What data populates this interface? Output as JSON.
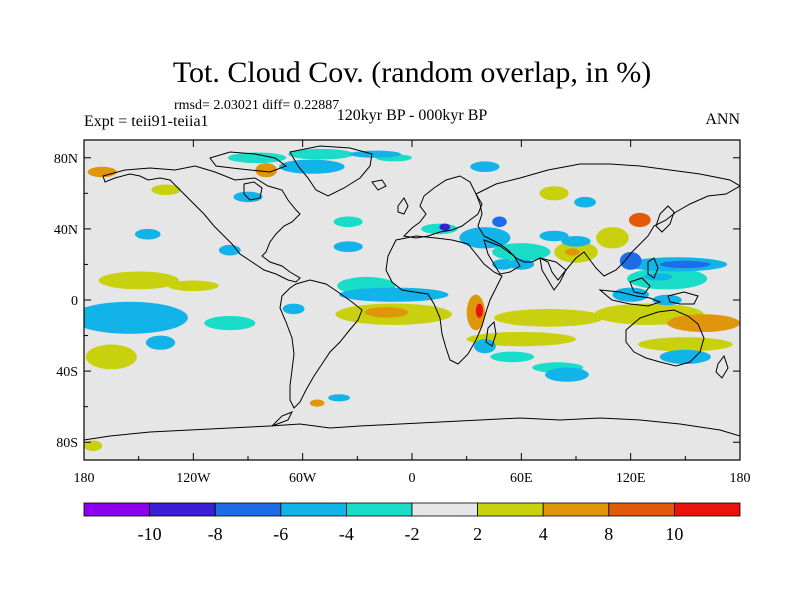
{
  "chart_data": {
    "type": "heatmap",
    "title": "Tot. Cloud Cov. (random overlap, in %)",
    "stats": "rmsd= 2.03021  diff= 0.22887",
    "experiment": "Expt = teii91-teiia1",
    "subtitle": "120kyr BP - 000kyr BP",
    "season": "ANN",
    "x_ticks": [
      "180",
      "120W",
      "60W",
      "0",
      "60E",
      "120E",
      "180"
    ],
    "x_values": [
      -180,
      -120,
      -60,
      0,
      60,
      120,
      180
    ],
    "y_ticks": [
      "80N",
      "40N",
      "0",
      "40S",
      "80S"
    ],
    "y_values": [
      80,
      40,
      0,
      -40,
      -80
    ],
    "xlim": [
      -180,
      180
    ],
    "ylim": [
      -90,
      90
    ],
    "colorbar": {
      "labels": [
        "-10",
        "-8",
        "-6",
        "-4",
        "-2",
        "2",
        "4",
        "8",
        "10"
      ],
      "colors": [
        "#8c00ee",
        "#3a1fd6",
        "#1d6ee6",
        "#11b3e8",
        "#19ddc8",
        "#e6e6e6",
        "#c9d10f",
        "#e0960a",
        "#e25a08",
        "#e8140c"
      ]
    },
    "regions": [
      {
        "lon": -160,
        "lat": -12,
        "rx": 22,
        "ry": 6,
        "level": 2
      },
      {
        "lon": -160,
        "lat": -12,
        "rx": 14,
        "ry": 4,
        "level": 1
      },
      {
        "lon": -155,
        "lat": -10,
        "rx": 32,
        "ry": 9,
        "level": 3
      },
      {
        "lon": -165,
        "lat": -32,
        "rx": 14,
        "ry": 7,
        "level": 6
      },
      {
        "lon": -150,
        "lat": 11,
        "rx": 22,
        "ry": 5,
        "level": 6
      },
      {
        "lon": -120,
        "lat": 8,
        "rx": 14,
        "ry": 3,
        "level": 6
      },
      {
        "lon": -100,
        "lat": -13,
        "rx": 14,
        "ry": 4,
        "level": 4
      },
      {
        "lon": -10,
        "lat": -8,
        "rx": 32,
        "ry": 6,
        "level": 6
      },
      {
        "lon": -14,
        "lat": -7,
        "rx": 12,
        "ry": 3,
        "level": 7
      },
      {
        "lon": -25,
        "lat": 8,
        "rx": 16,
        "ry": 5,
        "level": 4
      },
      {
        "lon": 35,
        "lat": -7,
        "rx": 5,
        "ry": 10,
        "level": 7
      },
      {
        "lon": 37,
        "lat": -6,
        "rx": 2,
        "ry": 4,
        "level": 9
      },
      {
        "lon": 75,
        "lat": -10,
        "rx": 30,
        "ry": 5,
        "level": 6
      },
      {
        "lon": 60,
        "lat": -22,
        "rx": 30,
        "ry": 4,
        "level": 6
      },
      {
        "lon": 55,
        "lat": -32,
        "rx": 12,
        "ry": 3,
        "level": 4
      },
      {
        "lon": 80,
        "lat": -38,
        "rx": 14,
        "ry": 3,
        "level": 4
      },
      {
        "lon": 60,
        "lat": 27,
        "rx": 16,
        "ry": 5,
        "level": 4
      },
      {
        "lon": 50,
        "lat": 20,
        "rx": 6,
        "ry": 3,
        "level": 3
      },
      {
        "lon": 35,
        "lat": 33,
        "rx": 5,
        "ry": 3,
        "level": 2
      },
      {
        "lon": 90,
        "lat": 27,
        "rx": 12,
        "ry": 6,
        "level": 6
      },
      {
        "lon": 88,
        "lat": 27,
        "rx": 4,
        "ry": 2,
        "level": 7
      },
      {
        "lon": 110,
        "lat": 35,
        "rx": 9,
        "ry": 6,
        "level": 6
      },
      {
        "lon": 125,
        "lat": 45,
        "rx": 6,
        "ry": 4,
        "level": 8
      },
      {
        "lon": 140,
        "lat": 12,
        "rx": 22,
        "ry": 6,
        "level": 4
      },
      {
        "lon": 135,
        "lat": 13,
        "rx": 8,
        "ry": 2,
        "level": 3
      },
      {
        "lon": 120,
        "lat": 3,
        "rx": 10,
        "ry": 4,
        "level": 3
      },
      {
        "lon": 130,
        "lat": -8,
        "rx": 30,
        "ry": 6,
        "level": 6
      },
      {
        "lon": 160,
        "lat": -13,
        "rx": 20,
        "ry": 5,
        "level": 7
      },
      {
        "lon": 150,
        "lat": -25,
        "rx": 26,
        "ry": 4,
        "level": 6
      },
      {
        "lon": -35,
        "lat": 44,
        "rx": 8,
        "ry": 3,
        "level": 4
      },
      {
        "lon": 15,
        "lat": 40,
        "rx": 10,
        "ry": 3,
        "level": 4
      },
      {
        "lon": 78,
        "lat": 60,
        "rx": 8,
        "ry": 4,
        "level": 6
      },
      {
        "lon": -85,
        "lat": 80,
        "rx": 16,
        "ry": 3,
        "level": 4
      },
      {
        "lon": -50,
        "lat": 82,
        "rx": 18,
        "ry": 3,
        "level": 4
      },
      {
        "lon": -10,
        "lat": 80,
        "rx": 10,
        "ry": 2,
        "level": 4
      },
      {
        "lon": -80,
        "lat": 73,
        "rx": 6,
        "ry": 4,
        "level": 7
      },
      {
        "lon": -170,
        "lat": 72,
        "rx": 8,
        "ry": 3,
        "level": 7
      },
      {
        "lon": -135,
        "lat": 62,
        "rx": 8,
        "ry": 3,
        "level": 6
      },
      {
        "lon": -175,
        "lat": -82,
        "rx": 5,
        "ry": 3,
        "level": 6
      },
      {
        "lon": -52,
        "lat": -58,
        "rx": 4,
        "ry": 2,
        "level": 7
      },
      {
        "lon": -145,
        "lat": 37,
        "rx": 7,
        "ry": 3,
        "level": 3
      },
      {
        "lon": -35,
        "lat": 30,
        "rx": 8,
        "ry": 3,
        "level": 3
      },
      {
        "lon": 40,
        "lat": 35,
        "rx": 14,
        "ry": 6,
        "level": 3
      },
      {
        "lon": 48,
        "lat": 44,
        "rx": 4,
        "ry": 3,
        "level": 2
      },
      {
        "lon": 60,
        "lat": 20,
        "rx": 7,
        "ry": 3,
        "level": 3
      },
      {
        "lon": 90,
        "lat": 33,
        "rx": 8,
        "ry": 3,
        "level": 3
      },
      {
        "lon": 145,
        "lat": 20,
        "rx": 28,
        "ry": 4,
        "level": 3
      },
      {
        "lon": 150,
        "lat": 20,
        "rx": 14,
        "ry": 2,
        "level": 2
      },
      {
        "lon": 120,
        "lat": 22,
        "rx": 6,
        "ry": 5,
        "level": 2
      },
      {
        "lon": 140,
        "lat": 0,
        "rx": 8,
        "ry": 3,
        "level": 3
      },
      {
        "lon": -10,
        "lat": 3,
        "rx": 30,
        "ry": 4,
        "level": 3
      },
      {
        "lon": -65,
        "lat": -5,
        "rx": 6,
        "ry": 3,
        "level": 3
      },
      {
        "lon": 40,
        "lat": -26,
        "rx": 6,
        "ry": 4,
        "level": 3
      },
      {
        "lon": 85,
        "lat": -42,
        "rx": 12,
        "ry": 4,
        "level": 3
      },
      {
        "lon": 150,
        "lat": -32,
        "rx": 14,
        "ry": 4,
        "level": 3
      },
      {
        "lon": -138,
        "lat": -24,
        "rx": 8,
        "ry": 4,
        "level": 3
      },
      {
        "lon": -55,
        "lat": 75,
        "rx": 18,
        "ry": 4,
        "level": 3
      },
      {
        "lon": -90,
        "lat": 58,
        "rx": 8,
        "ry": 3,
        "level": 3
      },
      {
        "lon": -20,
        "lat": 82,
        "rx": 14,
        "ry": 2,
        "level": 3
      },
      {
        "lon": -40,
        "lat": -55,
        "rx": 6,
        "ry": 2,
        "level": 3
      },
      {
        "lon": 40,
        "lat": 75,
        "rx": 8,
        "ry": 3,
        "level": 3
      },
      {
        "lon": 95,
        "lat": 55,
        "rx": 6,
        "ry": 3,
        "level": 3
      },
      {
        "lon": 78,
        "lat": 36,
        "rx": 8,
        "ry": 3,
        "level": 3
      },
      {
        "lon": -100,
        "lat": 28,
        "rx": 6,
        "ry": 3,
        "level": 3
      },
      {
        "lon": 18,
        "lat": 41,
        "rx": 3,
        "ry": 2,
        "level": 1
      }
    ]
  }
}
